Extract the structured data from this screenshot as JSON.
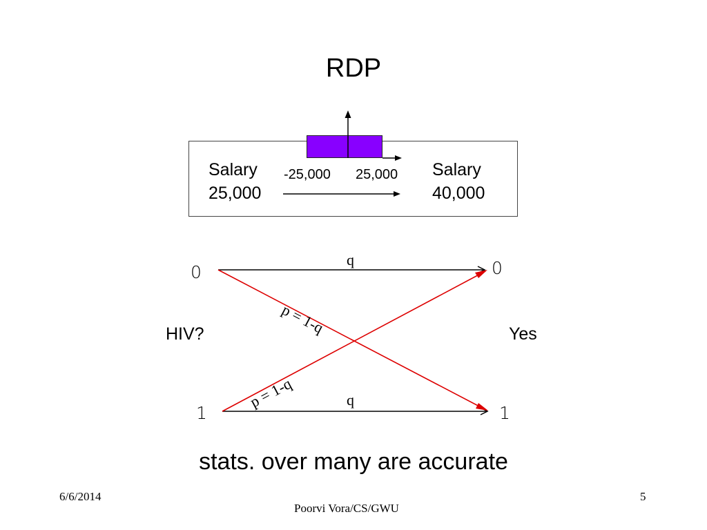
{
  "slide": {
    "title": "RDP",
    "caption": "stats. over many are accurate",
    "date": "6/6/2014",
    "author": "Poorvi Vora/CS/GWU",
    "page_number": "5"
  },
  "salary_box": {
    "left_label_line1": "Salary",
    "left_label_line2": "25,000",
    "right_label_line1": "Salary",
    "right_label_line2": "40,000",
    "range_low": "-25,000",
    "range_high": "25,000",
    "noise_color": "#8800ff"
  },
  "channel": {
    "input_top": "0",
    "input_bottom": "1",
    "output_top": "0",
    "output_bottom": "1",
    "input_label": "HIV?",
    "output_label": "Yes",
    "straight_top_label": "q",
    "straight_bottom_label": "q",
    "cross_down_label": "p = 1-q",
    "cross_up_label": "p = 1-q",
    "cross_color": "#dd0000"
  }
}
